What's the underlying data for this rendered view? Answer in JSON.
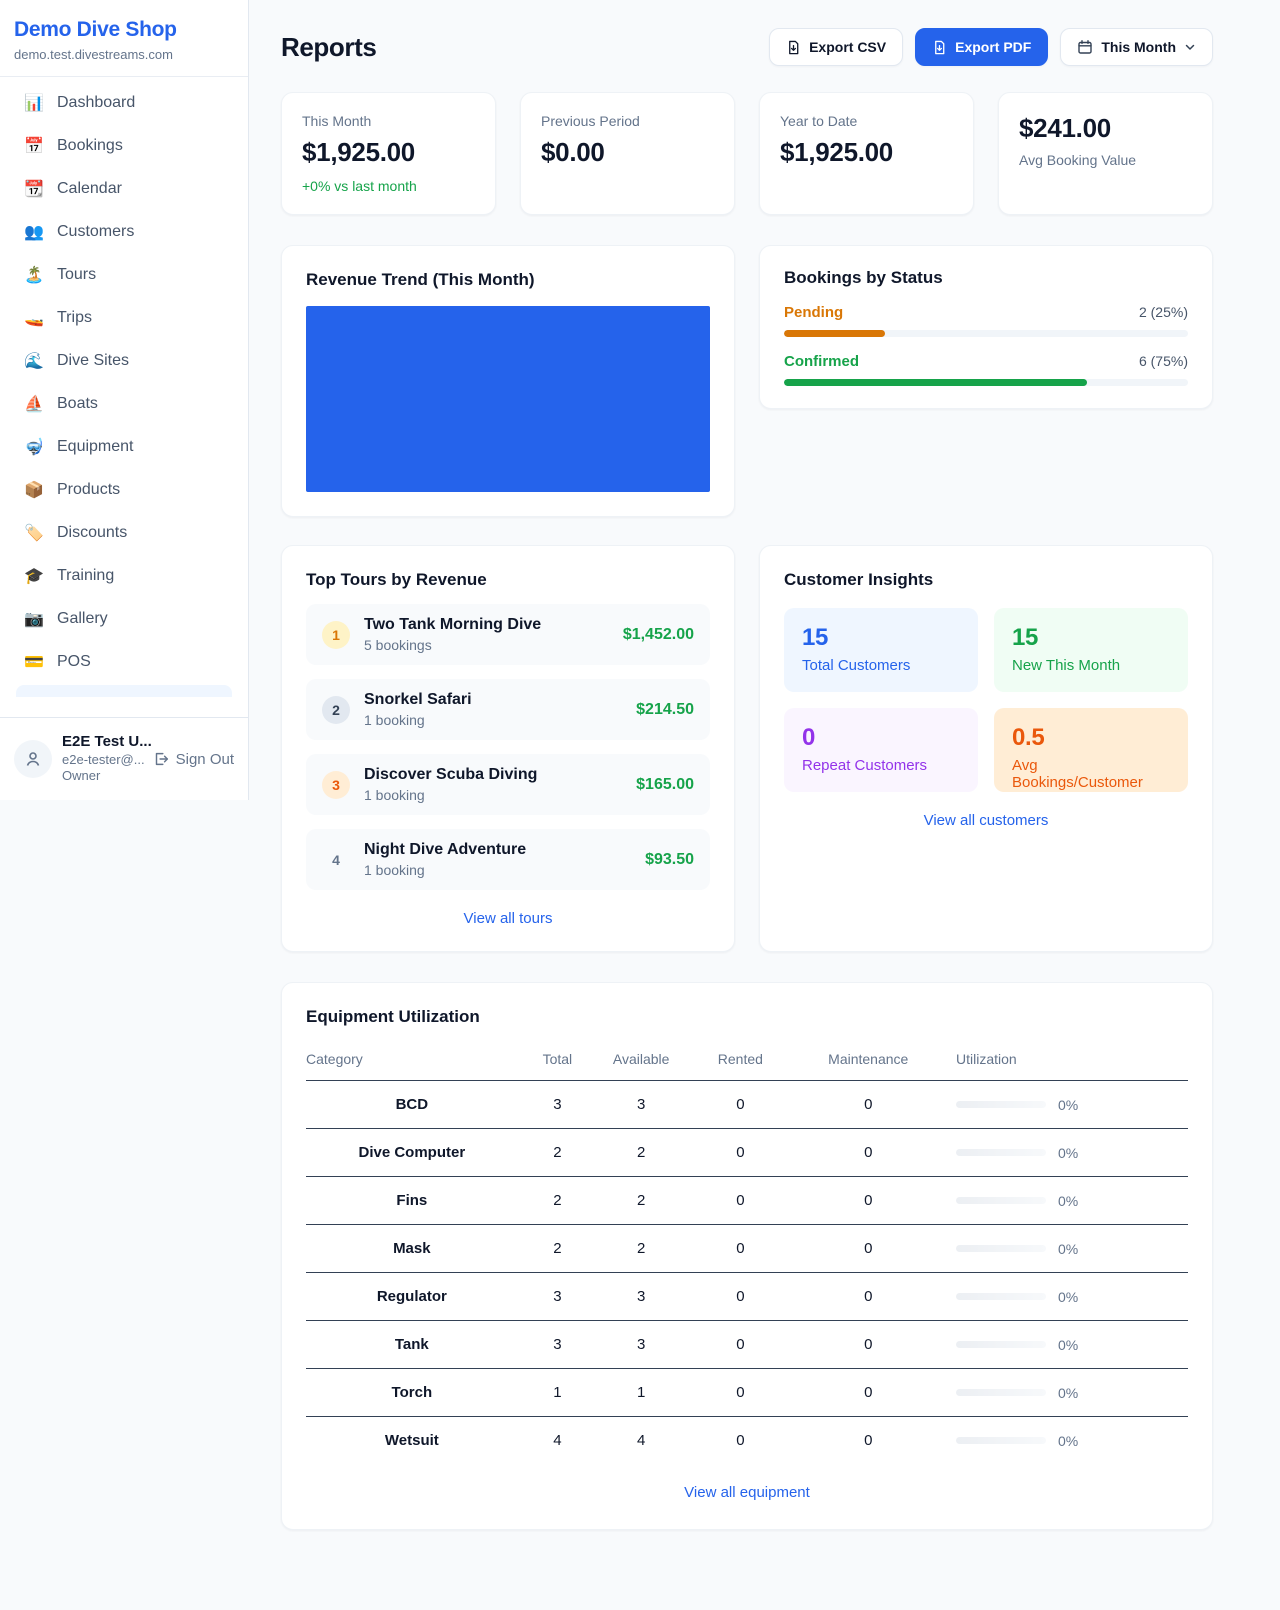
{
  "app": {
    "name": "Demo Dive Shop",
    "domain": "demo.test.divestreams.com"
  },
  "colors": {
    "accent_blue": "#2563eb",
    "positive_green": "#16a34a",
    "pending_orange": "#d97706",
    "maintenance_orange": "#ea580c",
    "purple": "#9333ea",
    "chart_fill": "#2563eb"
  },
  "sidebar": {
    "items": [
      {
        "icon": "📊",
        "label": "Dashboard"
      },
      {
        "icon": "📅",
        "label": "Bookings"
      },
      {
        "icon": "📆",
        "label": "Calendar"
      },
      {
        "icon": "👥",
        "label": "Customers"
      },
      {
        "icon": "🏝️",
        "label": "Tours"
      },
      {
        "icon": "🚤",
        "label": "Trips"
      },
      {
        "icon": "🌊",
        "label": "Dive Sites"
      },
      {
        "icon": "⛵",
        "label": "Boats"
      },
      {
        "icon": "🤿",
        "label": "Equipment"
      },
      {
        "icon": "📦",
        "label": "Products"
      },
      {
        "icon": "🏷️",
        "label": "Discounts"
      },
      {
        "icon": "🎓",
        "label": "Training"
      },
      {
        "icon": "📷",
        "label": "Gallery"
      },
      {
        "icon": "💳",
        "label": "POS"
      }
    ],
    "user": {
      "name": "E2E Test U...",
      "email": "e2e-tester@...",
      "role": "Owner",
      "sign_out_label": "Sign Out"
    }
  },
  "header": {
    "title": "Reports",
    "export_csv_label": "Export CSV",
    "export_pdf_label": "Export PDF",
    "period_selector_label": "This Month"
  },
  "stats": {
    "this_month": {
      "label": "This Month",
      "value": "$1,925.00",
      "delta": "+0% vs last month"
    },
    "previous_period": {
      "label": "Previous Period",
      "value": "$0.00"
    },
    "year_to_date": {
      "label": "Year to Date",
      "value": "$1,925.00"
    },
    "avg_booking": {
      "value": "$241.00",
      "label": "Avg Booking Value"
    }
  },
  "revenue_trend": {
    "title": "Revenue Trend (This Month)"
  },
  "bookings_by_status": {
    "title": "Bookings by Status",
    "rows": [
      {
        "label": "Pending",
        "value": "2 (25%)",
        "percent": 25,
        "color": "#d97706"
      },
      {
        "label": "Confirmed",
        "value": "6 (75%)",
        "percent": 75,
        "color": "#16a34a"
      }
    ]
  },
  "top_tours": {
    "title": "Top Tours by Revenue",
    "items": [
      {
        "rank": "1",
        "name": "Two Tank Morning Dive",
        "bookings": "5 bookings",
        "revenue": "$1,452.00"
      },
      {
        "rank": "2",
        "name": "Snorkel Safari",
        "bookings": "1 booking",
        "revenue": "$214.50"
      },
      {
        "rank": "3",
        "name": "Discover Scuba Diving",
        "bookings": "1 booking",
        "revenue": "$165.00"
      },
      {
        "rank": "4",
        "name": "Night Dive Adventure",
        "bookings": "1 booking",
        "revenue": "$93.50"
      }
    ],
    "view_all_label": "View all tours"
  },
  "customer_insights": {
    "title": "Customer Insights",
    "tiles": [
      {
        "value": "15",
        "label": "Total Customers",
        "color": "#2563eb",
        "bg": "#eff6ff"
      },
      {
        "value": "15",
        "label": "New This Month",
        "color": "#16a34a",
        "bg": "#f0fdf4"
      },
      {
        "value": "0",
        "label": "Repeat Customers",
        "color": "#9333ea",
        "bg": "#faf5ff"
      },
      {
        "value": "0.5",
        "label": "Avg Bookings/Customer",
        "color": "#ea580c",
        "bg": "#ffedd5"
      }
    ],
    "view_all_label": "View all customers"
  },
  "equipment": {
    "title": "Equipment Utilization",
    "columns": [
      "Category",
      "Total",
      "Available",
      "Rented",
      "Maintenance",
      "Utilization"
    ],
    "rows": [
      {
        "category": "BCD",
        "total": "3",
        "available": "3",
        "rented": "0",
        "maintenance": "0",
        "percent": 0,
        "utilization": "0%"
      },
      {
        "category": "Dive Computer",
        "total": "2",
        "available": "2",
        "rented": "0",
        "maintenance": "0",
        "percent": 0,
        "utilization": "0%"
      },
      {
        "category": "Fins",
        "total": "2",
        "available": "2",
        "rented": "0",
        "maintenance": "0",
        "percent": 0,
        "utilization": "0%"
      },
      {
        "category": "Mask",
        "total": "2",
        "available": "2",
        "rented": "0",
        "maintenance": "0",
        "percent": 0,
        "utilization": "0%"
      },
      {
        "category": "Regulator",
        "total": "3",
        "available": "3",
        "rented": "0",
        "maintenance": "0",
        "percent": 0,
        "utilization": "0%"
      },
      {
        "category": "Tank",
        "total": "3",
        "available": "3",
        "rented": "0",
        "maintenance": "0",
        "percent": 0,
        "utilization": "0%"
      },
      {
        "category": "Torch",
        "total": "1",
        "available": "1",
        "rented": "0",
        "maintenance": "0",
        "percent": 0,
        "utilization": "0%"
      },
      {
        "category": "Wetsuit",
        "total": "4",
        "available": "4",
        "rented": "0",
        "maintenance": "0",
        "percent": 0,
        "utilization": "0%"
      }
    ],
    "view_all_label": "View all equipment"
  }
}
